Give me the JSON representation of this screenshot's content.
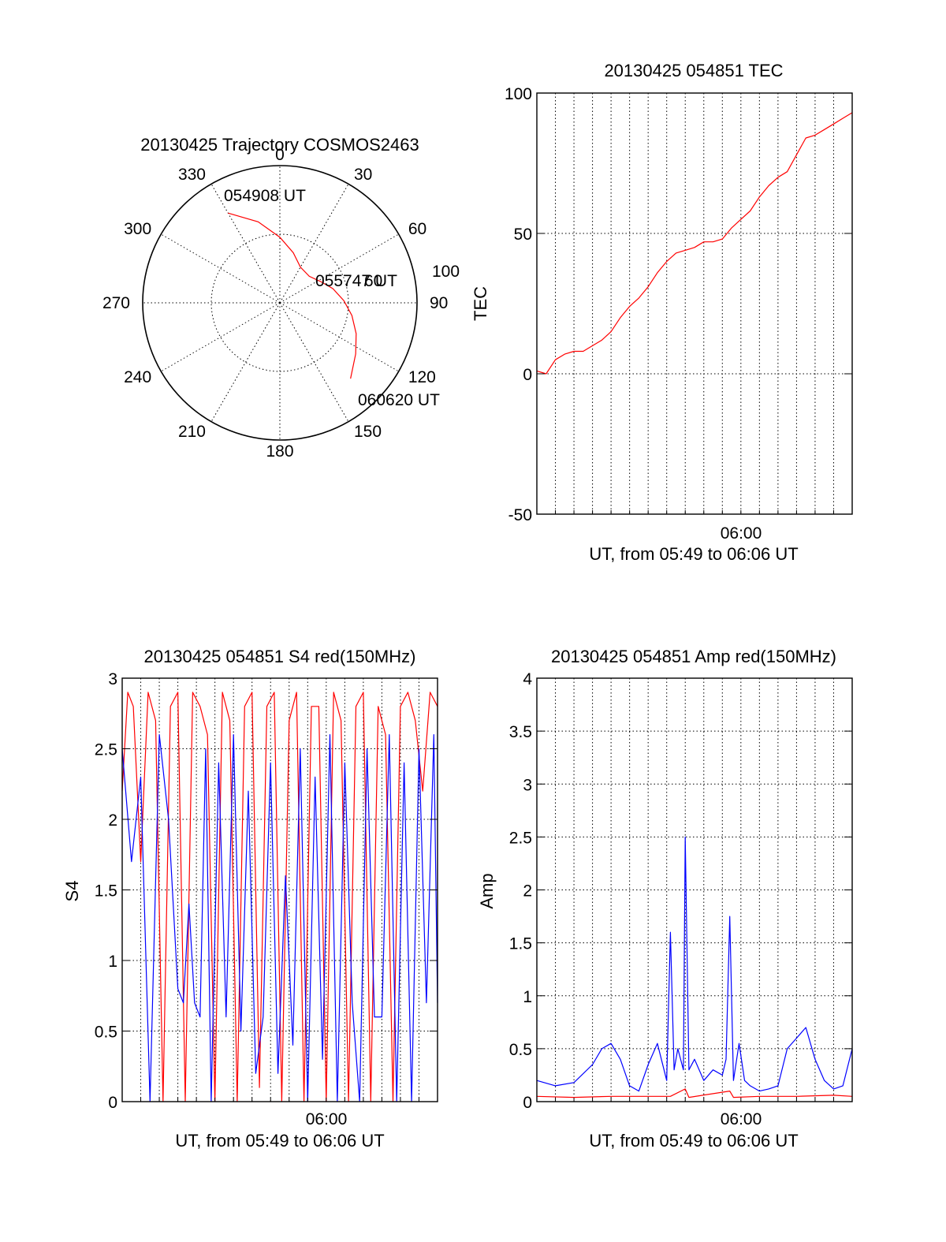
{
  "colors": {
    "red": "#ff0000",
    "blue": "#0000ff",
    "axes": "#000000"
  },
  "chart_data": [
    {
      "type": "scatter",
      "title": "20130425 Trajectory COSMOS2463",
      "projection": "polar",
      "azimuth_labels": [
        "0",
        "30",
        "60",
        "90",
        "120",
        "150",
        "180",
        "210",
        "240",
        "270",
        "300",
        "330"
      ],
      "radial_labels": [
        "60",
        "100"
      ],
      "series": [
        {
          "color": "red",
          "points": [
            {
              "az": 330,
              "el": 22
            },
            {
              "az": 345,
              "el": 35
            },
            {
              "az": 0,
              "el": 47
            },
            {
              "az": 15,
              "el": 56
            },
            {
              "az": 30,
              "el": 63
            },
            {
              "az": 48,
              "el": 64
            },
            {
              "az": 62,
              "el": 60
            },
            {
              "az": 75,
              "el": 54
            },
            {
              "az": 88,
              "el": 48
            },
            {
              "az": 100,
              "el": 42
            },
            {
              "az": 112,
              "el": 36
            },
            {
              "az": 124,
              "el": 30
            },
            {
              "az": 137,
              "el": 22
            }
          ]
        }
      ],
      "annotations": [
        "054908 UT",
        "055747 UT",
        "060620 UT"
      ]
    },
    {
      "type": "line",
      "title": "20130425 054851 TEC",
      "xlabel": "UT, from 05:49 to 06:06 UT",
      "ylabel": "TEC",
      "xlim": [
        0,
        17
      ],
      "ylim": [
        -50,
        100
      ],
      "yticks": [
        "-50",
        "0",
        "50",
        "100"
      ],
      "xtick_labels": [
        {
          "x": 11,
          "label": "06:00"
        }
      ],
      "series": [
        {
          "color": "red",
          "x": [
            0,
            0.5,
            1,
            1.5,
            2,
            2.5,
            3,
            3.5,
            4,
            4.5,
            5,
            5.5,
            6,
            6.5,
            7,
            7.5,
            8,
            8.5,
            9,
            9.5,
            10,
            10.5,
            11,
            11.5,
            12,
            12.5,
            13,
            13.5,
            14,
            14.5,
            15,
            15.5,
            16,
            16.5,
            17
          ],
          "y": [
            1,
            0,
            5,
            7,
            8,
            8,
            10,
            12,
            15,
            20,
            24,
            27,
            31,
            36,
            40,
            43,
            44,
            45,
            47,
            47,
            48,
            52,
            55,
            58,
            63,
            67,
            70,
            72,
            78,
            84,
            85,
            87,
            89,
            91,
            93
          ]
        }
      ]
    },
    {
      "type": "line",
      "title": "20130425 054851 S4 red(150MHz)",
      "xlabel": "UT, from 05:49 to 06:06 UT",
      "ylabel": "S4",
      "xlim": [
        0,
        17
      ],
      "ylim": [
        0,
        3
      ],
      "yticks": [
        "0",
        "0.5",
        "1",
        "1.5",
        "2",
        "2.5",
        "3"
      ],
      "xtick_labels": [
        {
          "x": 11,
          "label": "06:00"
        }
      ],
      "series": [
        {
          "color": "red",
          "x": [
            0,
            0.3,
            0.6,
            1.0,
            1.4,
            1.8,
            2.2,
            2.6,
            3.0,
            3.4,
            3.8,
            4.2,
            4.6,
            5.0,
            5.4,
            5.8,
            6.2,
            6.6,
            7.0,
            7.4,
            7.8,
            8.2,
            8.6,
            9.0,
            9.4,
            9.8,
            10.2,
            10.6,
            11.0,
            11.4,
            11.8,
            12.2,
            12.6,
            13.0,
            13.4,
            13.8,
            14.2,
            14.6,
            15.0,
            15.4,
            15.8,
            16.2,
            16.6,
            17.0
          ],
          "y": [
            2.2,
            2.9,
            2.8,
            1.7,
            2.9,
            2.7,
            0.0,
            2.8,
            2.9,
            0.0,
            2.9,
            2.8,
            2.6,
            0.0,
            2.9,
            2.7,
            0.0,
            2.8,
            2.9,
            0.1,
            2.8,
            2.9,
            0.0,
            2.7,
            2.9,
            0.0,
            2.8,
            2.8,
            0.0,
            2.9,
            2.7,
            0.0,
            2.8,
            2.9,
            0.0,
            2.8,
            2.6,
            0.0,
            2.8,
            2.9,
            2.7,
            2.2,
            2.9,
            2.8
          ]
        },
        {
          "color": "blue",
          "x": [
            0,
            0.5,
            1.0,
            1.5,
            2.0,
            2.5,
            3.0,
            3.3,
            3.6,
            3.9,
            4.2,
            4.5,
            4.8,
            5.2,
            5.6,
            6.0,
            6.4,
            6.8,
            7.2,
            7.6,
            8.0,
            8.4,
            8.8,
            9.2,
            9.6,
            10.0,
            10.4,
            10.8,
            11.2,
            11.6,
            12.0,
            12.4,
            12.8,
            13.2,
            13.6,
            14.0,
            14.4,
            14.8,
            15.2,
            15.6,
            16.0,
            16.4,
            16.8,
            17.0
          ],
          "y": [
            2.5,
            1.7,
            2.3,
            0.0,
            2.6,
            2.0,
            0.8,
            0.7,
            1.4,
            0.7,
            0.6,
            2.5,
            0.0,
            2.4,
            0.6,
            2.6,
            0.5,
            2.2,
            0.2,
            0.6,
            2.4,
            0.2,
            1.6,
            0.4,
            2.5,
            0.0,
            2.3,
            0.3,
            2.6,
            0.0,
            2.4,
            0.7,
            0.0,
            2.5,
            0.6,
            0.6,
            2.6,
            0.0,
            2.4,
            0.0,
            2.5,
            0.7,
            2.6,
            0.7
          ]
        }
      ]
    },
    {
      "type": "line",
      "title": "20130425 054851 Amp red(150MHz)",
      "xlabel": "UT, from 05:49 to 06:06 UT",
      "ylabel": "Amp",
      "xlim": [
        0,
        17
      ],
      "ylim": [
        0,
        4
      ],
      "yticks": [
        "0",
        "0.5",
        "1",
        "1.5",
        "2",
        "2.5",
        "3",
        "3.5",
        "4"
      ],
      "xtick_labels": [
        {
          "x": 11,
          "label": "06:00"
        }
      ],
      "series": [
        {
          "color": "red",
          "x": [
            0,
            2,
            4,
            6,
            7.2,
            8.0,
            8.2,
            10.4,
            10.6,
            12,
            14,
            16,
            17
          ],
          "y": [
            0.05,
            0.04,
            0.05,
            0.05,
            0.05,
            0.12,
            0.04,
            0.1,
            0.04,
            0.05,
            0.05,
            0.06,
            0.05
          ]
        },
        {
          "color": "blue",
          "x": [
            0,
            1,
            2,
            3,
            3.5,
            4,
            4.5,
            5,
            5.5,
            6,
            6.5,
            7,
            7.2,
            7.4,
            7.6,
            7.9,
            8.0,
            8.2,
            8.5,
            9,
            9.5,
            10,
            10.2,
            10.4,
            10.6,
            10.9,
            11.2,
            11.5,
            12,
            12.5,
            13,
            13.5,
            14,
            14.5,
            15,
            15.5,
            16,
            16.5,
            17
          ],
          "y": [
            0.2,
            0.15,
            0.18,
            0.35,
            0.5,
            0.55,
            0.4,
            0.15,
            0.1,
            0.35,
            0.55,
            0.2,
            1.6,
            0.3,
            0.5,
            0.3,
            2.5,
            0.3,
            0.4,
            0.2,
            0.3,
            0.25,
            0.4,
            1.75,
            0.2,
            0.55,
            0.2,
            0.15,
            0.1,
            0.12,
            0.15,
            0.5,
            0.6,
            0.7,
            0.4,
            0.2,
            0.12,
            0.15,
            0.5
          ]
        }
      ]
    }
  ]
}
